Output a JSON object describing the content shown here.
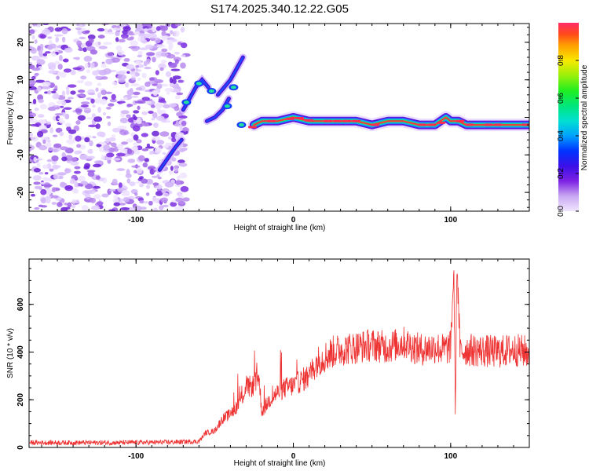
{
  "title": "S174.2025.340.12.22.G05",
  "chart_data": [
    {
      "type": "heatmap",
      "panel": "spectrogram",
      "xlabel": "Height of straight line (km)",
      "ylabel": "Frequency (Hz)",
      "xlim": [
        -168,
        150
      ],
      "ylim": [
        -25,
        25
      ],
      "x_ticks": [
        -100,
        0,
        100
      ],
      "y_ticks": [
        -20,
        -10,
        0,
        10,
        20
      ],
      "colorbar": {
        "label": "Normalized spectral amplitude",
        "range": [
          0,
          1
        ],
        "ticks": [
          0.0,
          0.2,
          0.4,
          0.6,
          0.8
        ]
      },
      "signal_track": {
        "description_points_x": [
          -70,
          -65,
          -60,
          -55,
          -50,
          -45,
          -40,
          -35,
          -30,
          -25,
          -20,
          -10,
          0,
          10,
          20,
          30,
          40,
          50,
          60,
          70,
          80,
          90,
          97,
          100,
          105,
          110,
          120,
          130,
          140,
          150
        ],
        "freq_hz": [
          3,
          6,
          9,
          8,
          7,
          5,
          3,
          8,
          -3,
          -2,
          -1,
          -1,
          0,
          -1,
          -1,
          -1,
          -1,
          -2,
          -1,
          -1,
          -2,
          -2,
          0,
          -1,
          -1,
          -2,
          -2,
          -2,
          -2,
          -2
        ]
      }
    },
    {
      "type": "line",
      "panel": "snr",
      "xlabel": "Height of straight line (km)",
      "ylabel": "SNR (10 * v/v)",
      "xlim": [
        -168,
        150
      ],
      "ylim": [
        0,
        790
      ],
      "x_ticks": [
        -100,
        0,
        100
      ],
      "y_ticks": [
        0,
        200,
        400,
        600
      ],
      "series": [
        {
          "name": "SNR",
          "color": "#ee3333",
          "x": [
            -168,
            -140,
            -110,
            -80,
            -60,
            -56,
            -50,
            -45,
            -40,
            -35,
            -30,
            -25,
            -22,
            -20,
            -15,
            -10,
            -5,
            0,
            5,
            10,
            15,
            20,
            25,
            30,
            40,
            50,
            60,
            70,
            80,
            90,
            95,
            100,
            102,
            103,
            104,
            106,
            110,
            120,
            130,
            140,
            150
          ],
          "values": [
            20,
            20,
            20,
            22,
            25,
            60,
            70,
            120,
            140,
            180,
            250,
            260,
            300,
            150,
            200,
            230,
            250,
            260,
            280,
            300,
            360,
            380,
            400,
            410,
            420,
            430,
            420,
            440,
            410,
            420,
            410,
            420,
            750,
            120,
            780,
            400,
            410,
            405,
            400,
            410,
            400
          ]
        }
      ]
    }
  ]
}
